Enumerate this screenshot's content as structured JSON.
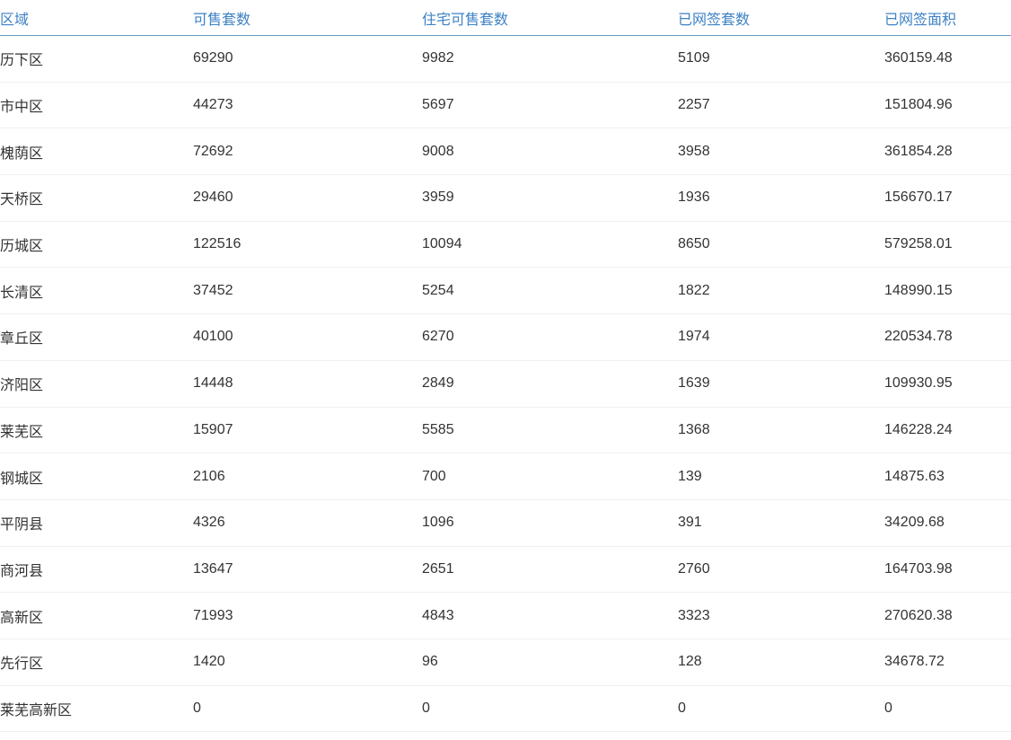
{
  "table": {
    "columns": [
      {
        "key": "region",
        "label": "区域"
      },
      {
        "key": "sellable_units",
        "label": "可售套数"
      },
      {
        "key": "residential_sellable_units",
        "label": "住宅可售套数"
      },
      {
        "key": "signed_units",
        "label": "已网签套数"
      },
      {
        "key": "signed_area",
        "label": "已网签面积"
      }
    ],
    "rows": [
      [
        "历下区",
        "69290",
        "9982",
        "5109",
        "360159.48"
      ],
      [
        "市中区",
        "44273",
        "5697",
        "2257",
        "151804.96"
      ],
      [
        "槐荫区",
        "72692",
        "9008",
        "3958",
        "361854.28"
      ],
      [
        "天桥区",
        "29460",
        "3959",
        "1936",
        "156670.17"
      ],
      [
        "历城区",
        "122516",
        "10094",
        "8650",
        "579258.01"
      ],
      [
        "长清区",
        "37452",
        "5254",
        "1822",
        "148990.15"
      ],
      [
        "章丘区",
        "40100",
        "6270",
        "1974",
        "220534.78"
      ],
      [
        "济阳区",
        "14448",
        "2849",
        "1639",
        "109930.95"
      ],
      [
        "莱芜区",
        "15907",
        "5585",
        "1368",
        "146228.24"
      ],
      [
        "钢城区",
        "2106",
        "700",
        "139",
        "14875.63"
      ],
      [
        "平阴县",
        "4326",
        "1096",
        "391",
        "34209.68"
      ],
      [
        "商河县",
        "13647",
        "2651",
        "2760",
        "164703.98"
      ],
      [
        "高新区",
        "71993",
        "4843",
        "3323",
        "270620.38"
      ],
      [
        "先行区",
        "1420",
        "96",
        "128",
        "34678.72"
      ],
      [
        "莱芜高新区",
        "0",
        "0",
        "0",
        "0"
      ]
    ],
    "colors": {
      "header_text": "#3e82c4",
      "header_border": "#6e9ac0",
      "row_border": "#f0f0f0",
      "body_text": "#333333",
      "background": "#ffffff"
    }
  }
}
